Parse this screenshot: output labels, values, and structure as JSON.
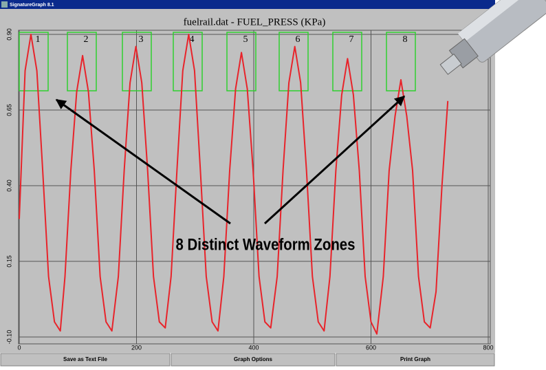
{
  "window": {
    "title": "SignatureGraph 8.1"
  },
  "chart_data": {
    "type": "line",
    "title": "fuelrail.dat - FUEL_PRESS (KPa)",
    "color": "#e8232a",
    "x": [
      0,
      10,
      20,
      30,
      40,
      50,
      60,
      70,
      78,
      88,
      98,
      108,
      118,
      128,
      138,
      148,
      158,
      169,
      179,
      189,
      199,
      209,
      219,
      229,
      239,
      249,
      259,
      269,
      279,
      289,
      299,
      309,
      319,
      329,
      339,
      349,
      359,
      369,
      379,
      389,
      399,
      409,
      419,
      429,
      440,
      450,
      460,
      470,
      480,
      490,
      500,
      510,
      520,
      530,
      540,
      550,
      560,
      570,
      580,
      590,
      600,
      610,
      621,
      631,
      641,
      651,
      661,
      671,
      681,
      691,
      701,
      711,
      721,
      731
    ],
    "values": [
      0.29,
      0.78,
      0.9,
      0.78,
      0.45,
      0.1,
      -0.05,
      -0.08,
      0.1,
      0.45,
      0.71,
      0.83,
      0.71,
      0.45,
      0.1,
      -0.05,
      -0.08,
      0.1,
      0.45,
      0.74,
      0.86,
      0.74,
      0.45,
      0.1,
      -0.05,
      -0.07,
      0.1,
      0.45,
      0.78,
      0.9,
      0.78,
      0.45,
      0.1,
      -0.05,
      -0.08,
      0.1,
      0.45,
      0.72,
      0.84,
      0.72,
      0.45,
      0.1,
      -0.05,
      -0.07,
      0.1,
      0.45,
      0.74,
      0.86,
      0.74,
      0.45,
      0.1,
      -0.05,
      -0.08,
      0.1,
      0.45,
      0.7,
      0.82,
      0.7,
      0.45,
      0.1,
      -0.05,
      -0.09,
      0.1,
      0.45,
      0.63,
      0.75,
      0.63,
      0.45,
      0.1,
      -0.05,
      -0.07,
      0.05,
      0.4,
      0.68
    ],
    "xlim": [
      0,
      800
    ],
    "ylim": [
      -0.1,
      0.9
    ],
    "xticks": [
      0,
      200,
      400,
      600,
      800
    ],
    "yticks": [
      {
        "value": 0.9,
        "label": "0.90"
      },
      0.65,
      {
        "value": 0.4,
        "label": "0.40"
      },
      0.15,
      {
        "value": -0.1,
        "label": "-0.10"
      }
    ],
    "grid": true,
    "zones": [
      "1",
      "2",
      "3",
      "4",
      "5",
      "6",
      "7",
      "8"
    ],
    "annotation": "8 Distinct Waveform Zones"
  },
  "buttons": [
    "Save as Text File",
    "Graph Options",
    "Print Graph"
  ]
}
